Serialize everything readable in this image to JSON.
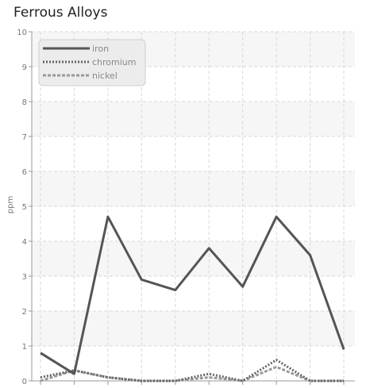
{
  "chart_data": {
    "type": "line",
    "title": "Ferrous Alloys",
    "xlabel": "",
    "ylabel": "ppm",
    "ylim": [
      0,
      10
    ],
    "yticks": [
      0,
      1,
      2,
      3,
      4,
      5,
      6,
      7,
      8,
      9,
      10
    ],
    "x_count": 10,
    "grid": true,
    "legend_position": "top-left",
    "series": [
      {
        "name": "iron",
        "color": "#555555",
        "style": "solid",
        "values": [
          0.8,
          0.2,
          4.7,
          2.9,
          2.6,
          3.8,
          2.7,
          4.7,
          3.6,
          0.9
        ]
      },
      {
        "name": "chromium",
        "color": "#666666",
        "style": "dotted",
        "values": [
          0.1,
          0.3,
          0.1,
          0.0,
          0.0,
          0.2,
          0.0,
          0.6,
          0.0,
          0.0
        ]
      },
      {
        "name": "nickel",
        "color": "#999999",
        "style": "dashed",
        "values": [
          0.0,
          0.3,
          0.1,
          0.0,
          0.0,
          0.1,
          0.0,
          0.4,
          0.0,
          0.0
        ]
      }
    ]
  }
}
